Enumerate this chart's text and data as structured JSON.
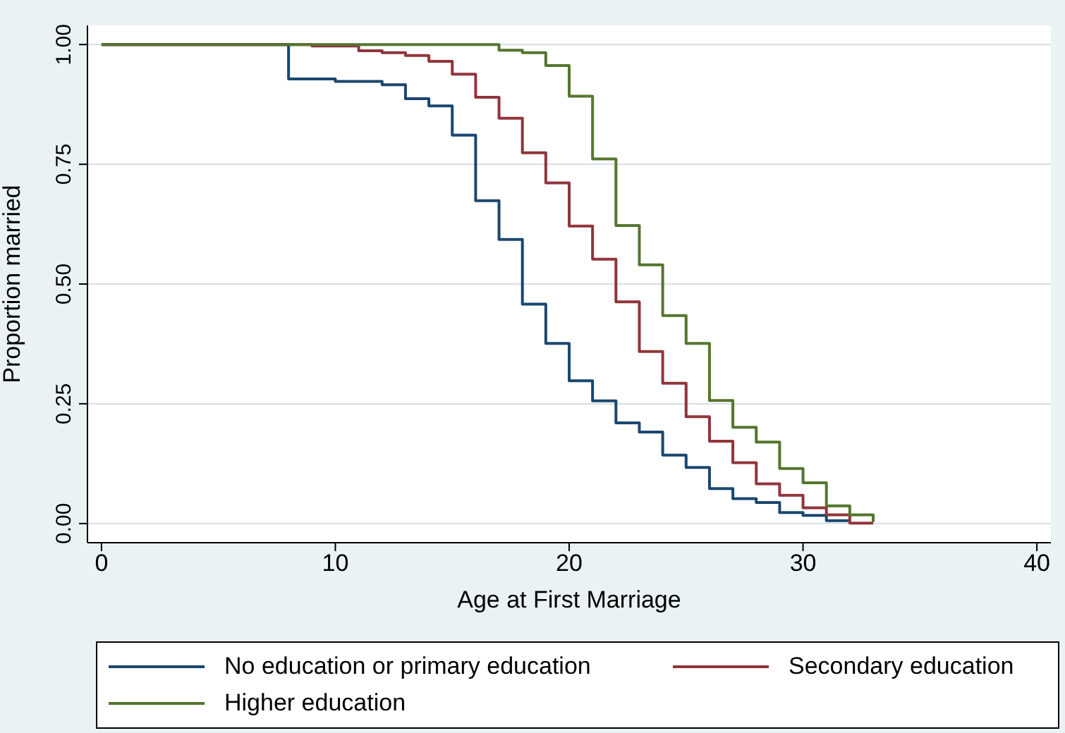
{
  "chart_data": {
    "type": "step",
    "xlabel": "Age at First Marriage",
    "ylabel": "Proportion married",
    "xlim": [
      -0.6,
      40.6
    ],
    "xticks": [
      0,
      10,
      20,
      30,
      40
    ],
    "ylim": [
      -0.04,
      1.04
    ],
    "yticks": [
      {
        "value": 0,
        "label": "0.00"
      },
      {
        "value": 0.25,
        "label": "0.25"
      },
      {
        "value": 0.5,
        "label": "0.50"
      },
      {
        "value": 0.75,
        "label": "0.75"
      },
      {
        "value": 1,
        "label": "1.00"
      }
    ],
    "grid": "y",
    "legend": "bottom",
    "marker": "none",
    "line_style": "solid",
    "series": [
      {
        "name": "No education or primary education",
        "color": "#1a476f",
        "x": [
          0,
          8,
          10,
          12,
          13,
          14,
          15,
          16,
          17,
          18,
          19,
          20,
          21,
          22,
          23,
          24,
          25,
          26,
          27,
          28,
          29,
          30,
          31,
          32
        ],
        "values": [
          1,
          0.928,
          0.923,
          0.916,
          0.887,
          0.872,
          0.811,
          0.674,
          0.593,
          0.458,
          0.376,
          0.298,
          0.256,
          0.21,
          0.191,
          0.143,
          0.117,
          0.073,
          0.052,
          0.044,
          0.023,
          0.017,
          0.006,
          0.006
        ]
      },
      {
        "name": "Secondary education",
        "color": "#90353b",
        "x": [
          0,
          9,
          11,
          12,
          13,
          14,
          15,
          16,
          17,
          18,
          19,
          20,
          21,
          22,
          23,
          24,
          25,
          26,
          27,
          28,
          29,
          30,
          31,
          32,
          33
        ],
        "values": [
          1,
          0.997,
          0.987,
          0.983,
          0.977,
          0.965,
          0.938,
          0.89,
          0.846,
          0.774,
          0.711,
          0.621,
          0.552,
          0.463,
          0.359,
          0.293,
          0.223,
          0.172,
          0.127,
          0.083,
          0.059,
          0.033,
          0.018,
          0.001,
          0.001
        ]
      },
      {
        "name": "Higher education",
        "color": "#55752f",
        "x": [
          0,
          17,
          18,
          19,
          20,
          21,
          22,
          23,
          24,
          25,
          26,
          27,
          28,
          29,
          30,
          31,
          32,
          33
        ],
        "values": [
          1,
          0.988,
          0.983,
          0.956,
          0.892,
          0.761,
          0.622,
          0.54,
          0.434,
          0.376,
          0.257,
          0.201,
          0.17,
          0.115,
          0.085,
          0.037,
          0.018,
          0.003
        ]
      }
    ]
  }
}
